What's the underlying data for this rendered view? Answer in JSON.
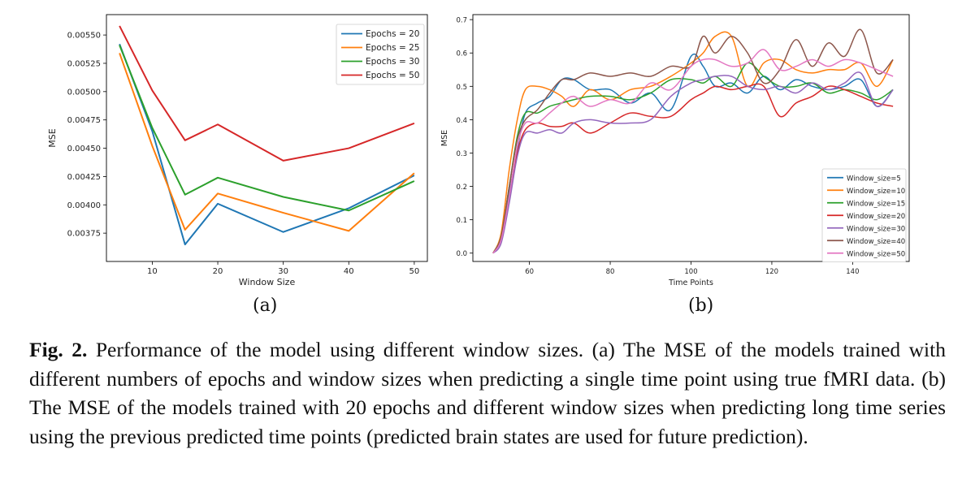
{
  "charts": [
    {
      "type": "line",
      "title": "",
      "xlabel": "Window Size",
      "ylabel": "MSE",
      "xlim": [
        3,
        52
      ],
      "ylim": [
        0.0035,
        0.00568
      ],
      "xticks": [
        10,
        20,
        30,
        40,
        50
      ],
      "yticks": [
        0.00375,
        0.004,
        0.00425,
        0.0045,
        0.00475,
        0.005,
        0.00525,
        0.0055
      ],
      "ytick_labels": [
        "0.00375",
        "0.00400",
        "0.00425",
        "0.00450",
        "0.00475",
        "0.00500",
        "0.00525",
        "0.00550"
      ],
      "grid": false,
      "legend_position": "top-right",
      "x": [
        5,
        10,
        15,
        20,
        30,
        40,
        50
      ],
      "series": [
        {
          "name": "Epochs = 20",
          "color": "#1f77b4",
          "values": [
            0.00542,
            0.00465,
            0.00365,
            0.00401,
            0.00376,
            0.00397,
            0.00426
          ]
        },
        {
          "name": "Epochs = 25",
          "color": "#ff7f0e",
          "values": [
            0.00534,
            0.00452,
            0.00378,
            0.0041,
            0.00393,
            0.00377,
            0.00428
          ]
        },
        {
          "name": "Epochs = 30",
          "color": "#2ca02c",
          "values": [
            0.00541,
            0.00468,
            0.00409,
            0.00424,
            0.00407,
            0.00395,
            0.00421
          ]
        },
        {
          "name": "Epochs = 50",
          "color": "#d62728",
          "values": [
            0.00558,
            0.00501,
            0.00457,
            0.00471,
            0.00439,
            0.0045,
            0.00472
          ]
        }
      ]
    },
    {
      "type": "line",
      "title": "",
      "xlabel": "Time Points",
      "ylabel": "MSE",
      "xlim": [
        46,
        154
      ],
      "ylim": [
        -0.025,
        0.715
      ],
      "xticks": [
        60,
        80,
        100,
        120,
        140
      ],
      "yticks": [
        0.0,
        0.1,
        0.2,
        0.3,
        0.4,
        0.5,
        0.6,
        0.7
      ],
      "ytick_labels": [
        "0.0",
        "0.1",
        "0.2",
        "0.3",
        "0.4",
        "0.5",
        "0.6",
        "0.7"
      ],
      "grid": false,
      "legend_position": "bottom-right",
      "x": [
        51,
        53,
        55,
        57,
        59,
        62,
        65,
        68,
        71,
        75,
        80,
        85,
        90,
        95,
        100,
        103,
        106,
        110,
        114,
        118,
        122,
        126,
        130,
        134,
        138,
        142,
        146,
        150
      ],
      "series": [
        {
          "name": "Window_size=5",
          "color": "#1f77b4",
          "values": [
            0.0,
            0.05,
            0.18,
            0.31,
            0.42,
            0.45,
            0.47,
            0.52,
            0.52,
            0.49,
            0.49,
            0.45,
            0.48,
            0.43,
            0.59,
            0.56,
            0.5,
            0.51,
            0.48,
            0.53,
            0.49,
            0.52,
            0.5,
            0.49,
            0.5,
            0.52,
            0.44,
            0.49
          ]
        },
        {
          "name": "Window_size=10",
          "color": "#ff7f0e",
          "values": [
            0.0,
            0.06,
            0.25,
            0.4,
            0.49,
            0.5,
            0.49,
            0.47,
            0.44,
            0.49,
            0.46,
            0.49,
            0.5,
            0.53,
            0.57,
            0.6,
            0.65,
            0.65,
            0.5,
            0.57,
            0.58,
            0.55,
            0.54,
            0.55,
            0.55,
            0.57,
            0.5,
            0.58
          ]
        },
        {
          "name": "Window_size=15",
          "color": "#2ca02c",
          "values": [
            0.0,
            0.05,
            0.2,
            0.35,
            0.42,
            0.42,
            0.44,
            0.45,
            0.46,
            0.47,
            0.47,
            0.46,
            0.48,
            0.52,
            0.52,
            0.51,
            0.53,
            0.5,
            0.57,
            0.53,
            0.5,
            0.5,
            0.51,
            0.48,
            0.49,
            0.48,
            0.46,
            0.49
          ]
        },
        {
          "name": "Window_size=20",
          "color": "#d62728",
          "values": [
            0.0,
            0.04,
            0.16,
            0.3,
            0.37,
            0.39,
            0.38,
            0.38,
            0.39,
            0.36,
            0.39,
            0.42,
            0.41,
            0.41,
            0.46,
            0.48,
            0.5,
            0.49,
            0.5,
            0.5,
            0.41,
            0.45,
            0.47,
            0.5,
            0.49,
            0.47,
            0.45,
            0.44
          ]
        },
        {
          "name": "Window_size=30",
          "color": "#9467bd",
          "values": [
            0.0,
            0.03,
            0.15,
            0.29,
            0.36,
            0.36,
            0.37,
            0.36,
            0.39,
            0.4,
            0.39,
            0.39,
            0.4,
            0.47,
            0.51,
            0.52,
            0.53,
            0.53,
            0.5,
            0.49,
            0.5,
            0.48,
            0.51,
            0.49,
            0.51,
            0.54,
            0.44,
            0.49
          ]
        },
        {
          "name": "Window_size=40",
          "color": "#8c564b",
          "values": [
            0.0,
            0.05,
            0.2,
            0.34,
            0.4,
            0.43,
            0.48,
            0.52,
            0.52,
            0.54,
            0.53,
            0.54,
            0.53,
            0.56,
            0.56,
            0.65,
            0.6,
            0.65,
            0.6,
            0.51,
            0.55,
            0.64,
            0.56,
            0.63,
            0.59,
            0.67,
            0.54,
            0.58
          ]
        },
        {
          "name": "Window_size=50",
          "color": "#e377c2",
          "values": [
            0.0,
            0.04,
            0.17,
            0.32,
            0.39,
            0.39,
            0.42,
            0.45,
            0.47,
            0.44,
            0.46,
            0.45,
            0.51,
            0.49,
            0.56,
            0.58,
            0.58,
            0.56,
            0.57,
            0.61,
            0.55,
            0.56,
            0.58,
            0.56,
            0.58,
            0.57,
            0.55,
            0.53
          ]
        }
      ]
    }
  ],
  "labels": {
    "a": "(a)",
    "b": "(b)"
  },
  "caption": {
    "lead": "Fig. 2.",
    "text": " Performance of the model using different window sizes. (a) The MSE of the models trained with different numbers of epochs and window sizes when predicting a single time point using true fMRI data. (b) The MSE of the models trained with 20 epochs and different window sizes when predicting long time series using the previous predicted time points (predicted brain states are used for future prediction)."
  }
}
